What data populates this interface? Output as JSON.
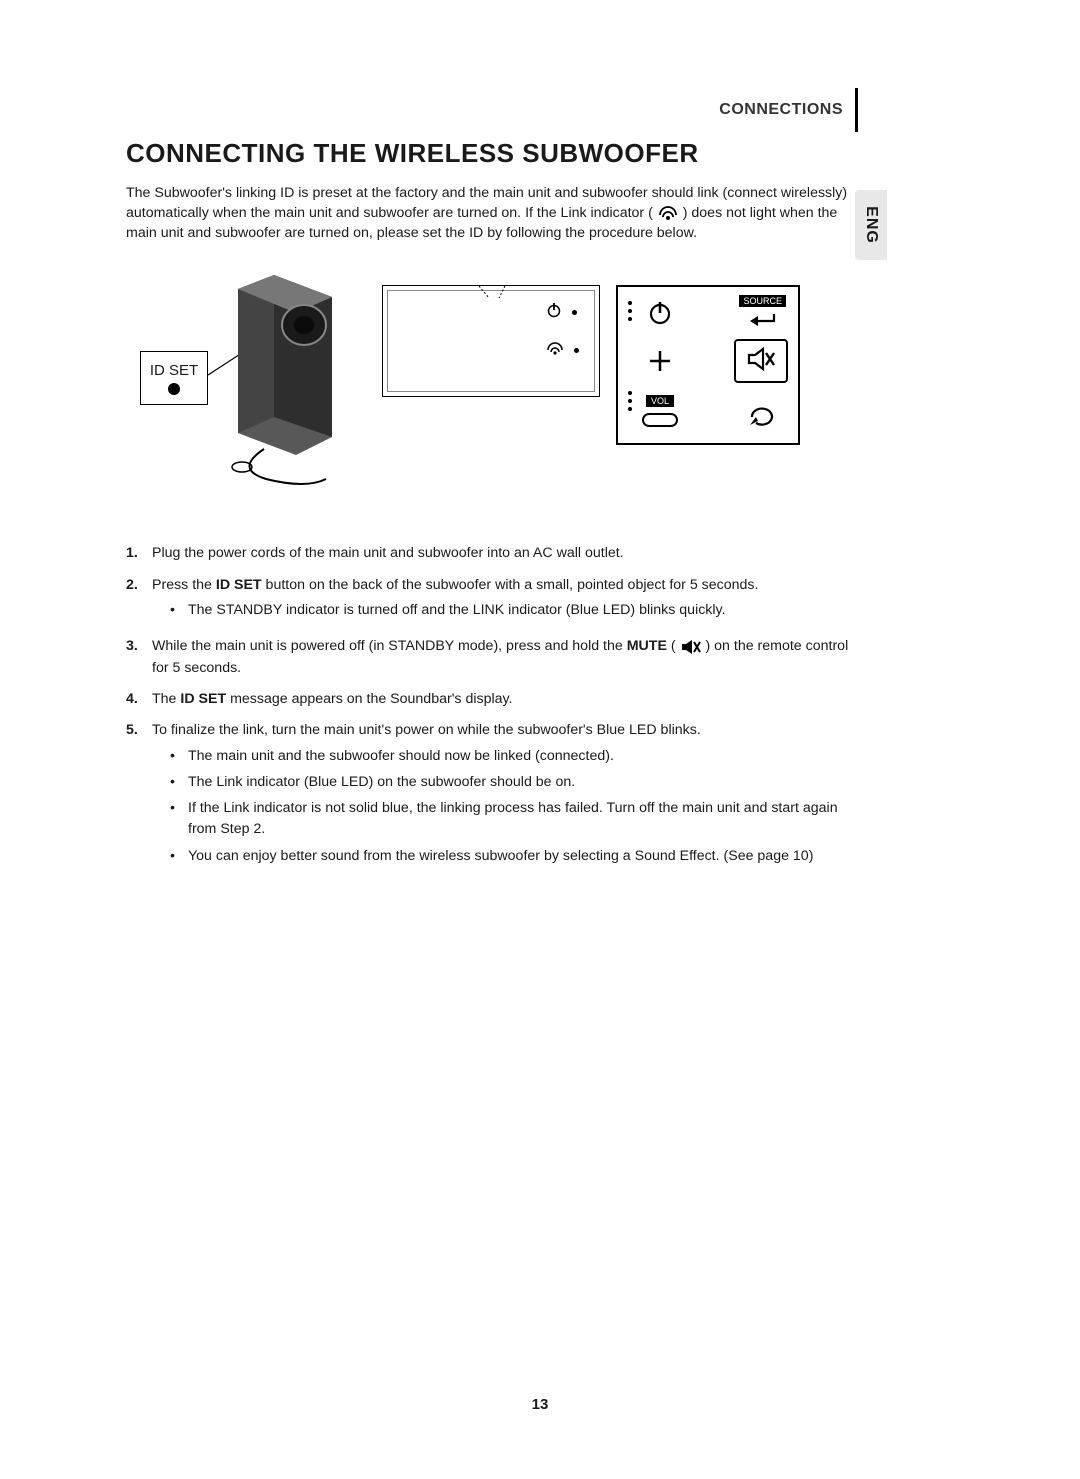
{
  "header": {
    "section": "CONNECTIONS",
    "lang_tab": "ENG"
  },
  "title": "CONNECTING THE WIRELESS SUBWOOFER",
  "intro": {
    "part1": "The Subwoofer's linking ID is preset at the factory and the main unit and subwoofer should link (connect wirelessly) automatically when the main unit and subwoofer are turned on. If the Link indicator (",
    "part2": ") does not light when the main unit and subwoofer are turned on, please set the ID by following the procedure below."
  },
  "diagram": {
    "id_set_label": "ID SET",
    "source_label": "SOURCE",
    "vol_label": "VOL"
  },
  "steps": [
    {
      "num": "1.",
      "text": "Plug the power cords of the main unit and subwoofer into an AC wall outlet.",
      "bullets": []
    },
    {
      "num": "2.",
      "parts": [
        {
          "t": "Press the "
        },
        {
          "b": "ID SET"
        },
        {
          "t": " button on the back of the subwoofer with a small, pointed object for 5 seconds."
        }
      ],
      "bullets": [
        "The STANDBY indicator is turned off and the LINK indicator (Blue LED) blinks quickly."
      ]
    },
    {
      "num": "3.",
      "parts": [
        {
          "t": "While the main unit is powered off (in STANDBY mode), press and hold the "
        },
        {
          "b": "MUTE"
        },
        {
          "t": " ( "
        },
        {
          "icon": "mute"
        },
        {
          "t": " ) on the remote control for 5 seconds."
        }
      ],
      "bullets": []
    },
    {
      "num": "4.",
      "parts": [
        {
          "t": "The "
        },
        {
          "b": "ID SET"
        },
        {
          "t": " message appears on the Soundbar's display."
        }
      ],
      "bullets": []
    },
    {
      "num": "5.",
      "text": "To finalize the link, turn the main unit's power on while the subwoofer's Blue LED blinks.",
      "bullets": [
        "The main unit and the subwoofer should now be linked (connected).",
        "The Link indicator (Blue LED) on the subwoofer should be on.",
        "If the Link indicator is not solid blue, the linking process has failed. Turn off the main unit and start again from Step 2.",
        "You can enjoy better sound from the wireless subwoofer by selecting a Sound Effect. (See page 10)"
      ]
    }
  ],
  "page_number": "13",
  "colors": {
    "text": "#1a1a1a",
    "bg": "#ffffff",
    "tab_bg": "#e8e8e8",
    "divider": "#000000"
  },
  "icons": {
    "link": "link-signal-icon",
    "power": "power-icon",
    "mute": "mute-icon",
    "source_arrow": "arrow-return-icon",
    "repeat": "repeat-icon"
  }
}
